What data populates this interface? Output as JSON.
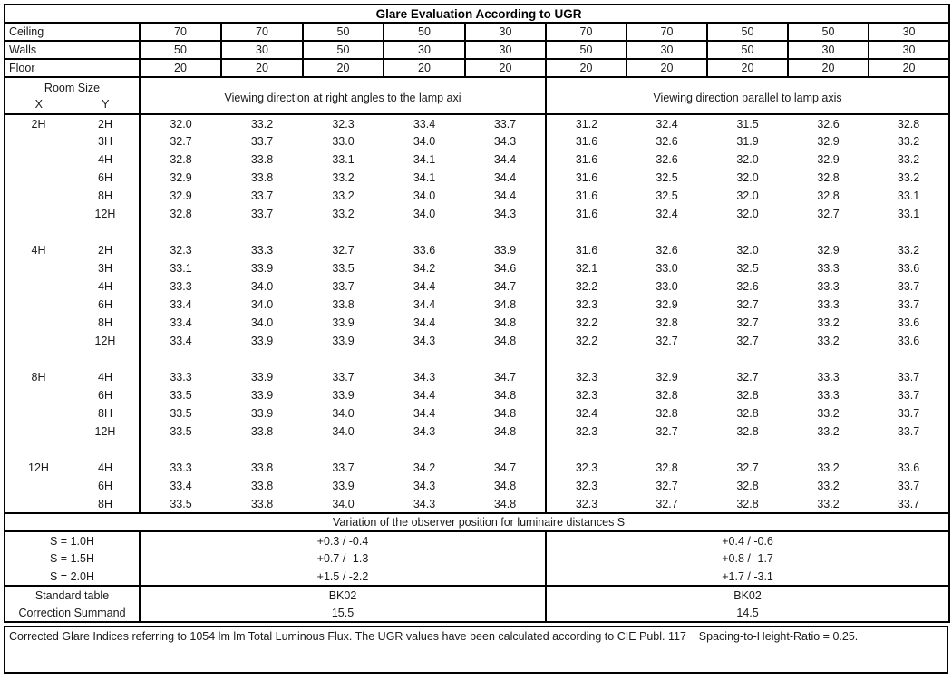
{
  "title": "Glare Evaluation According to UGR",
  "surface_rows": [
    {
      "label": "Ceiling",
      "values": [
        "70",
        "70",
        "50",
        "50",
        "30",
        "70",
        "70",
        "50",
        "50",
        "30"
      ]
    },
    {
      "label": "Walls",
      "values": [
        "50",
        "30",
        "50",
        "30",
        "30",
        "50",
        "30",
        "50",
        "30",
        "30"
      ]
    },
    {
      "label": "Floor",
      "values": [
        "20",
        "20",
        "20",
        "20",
        "20",
        "20",
        "20",
        "20",
        "20",
        "20"
      ]
    }
  ],
  "header": {
    "room_size": "Room Size",
    "x": "X",
    "y": "Y",
    "left_direction": "Viewing direction at right angles to the lamp axi",
    "right_direction": "Viewing direction parallel to lamp axis"
  },
  "groups": [
    {
      "x": "2H",
      "rows": [
        {
          "y": "2H",
          "left": [
            "32.0",
            "33.2",
            "32.3",
            "33.4",
            "33.7"
          ],
          "right": [
            "31.2",
            "32.4",
            "31.5",
            "32.6",
            "32.8"
          ]
        },
        {
          "y": "3H",
          "left": [
            "32.7",
            "33.7",
            "33.0",
            "34.0",
            "34.3"
          ],
          "right": [
            "31.6",
            "32.6",
            "31.9",
            "32.9",
            "33.2"
          ]
        },
        {
          "y": "4H",
          "left": [
            "32.8",
            "33.8",
            "33.1",
            "34.1",
            "34.4"
          ],
          "right": [
            "31.6",
            "32.6",
            "32.0",
            "32.9",
            "33.2"
          ]
        },
        {
          "y": "6H",
          "left": [
            "32.9",
            "33.8",
            "33.2",
            "34.1",
            "34.4"
          ],
          "right": [
            "31.6",
            "32.5",
            "32.0",
            "32.8",
            "33.2"
          ]
        },
        {
          "y": "8H",
          "left": [
            "32.9",
            "33.7",
            "33.2",
            "34.0",
            "34.4"
          ],
          "right": [
            "31.6",
            "32.5",
            "32.0",
            "32.8",
            "33.1"
          ]
        },
        {
          "y": "12H",
          "left": [
            "32.8",
            "33.7",
            "33.2",
            "34.0",
            "34.3"
          ],
          "right": [
            "31.6",
            "32.4",
            "32.0",
            "32.7",
            "33.1"
          ]
        }
      ]
    },
    {
      "x": "4H",
      "rows": [
        {
          "y": "2H",
          "left": [
            "32.3",
            "33.3",
            "32.7",
            "33.6",
            "33.9"
          ],
          "right": [
            "31.6",
            "32.6",
            "32.0",
            "32.9",
            "33.2"
          ]
        },
        {
          "y": "3H",
          "left": [
            "33.1",
            "33.9",
            "33.5",
            "34.2",
            "34.6"
          ],
          "right": [
            "32.1",
            "33.0",
            "32.5",
            "33.3",
            "33.6"
          ]
        },
        {
          "y": "4H",
          "left": [
            "33.3",
            "34.0",
            "33.7",
            "34.4",
            "34.7"
          ],
          "right": [
            "32.2",
            "33.0",
            "32.6",
            "33.3",
            "33.7"
          ]
        },
        {
          "y": "6H",
          "left": [
            "33.4",
            "34.0",
            "33.8",
            "34.4",
            "34.8"
          ],
          "right": [
            "32.3",
            "32.9",
            "32.7",
            "33.3",
            "33.7"
          ]
        },
        {
          "y": "8H",
          "left": [
            "33.4",
            "34.0",
            "33.9",
            "34.4",
            "34.8"
          ],
          "right": [
            "32.2",
            "32.8",
            "32.7",
            "33.2",
            "33.6"
          ]
        },
        {
          "y": "12H",
          "left": [
            "33.4",
            "33.9",
            "33.9",
            "34.3",
            "34.8"
          ],
          "right": [
            "32.2",
            "32.7",
            "32.7",
            "33.2",
            "33.6"
          ]
        }
      ]
    },
    {
      "x": "8H",
      "rows": [
        {
          "y": "4H",
          "left": [
            "33.3",
            "33.9",
            "33.7",
            "34.3",
            "34.7"
          ],
          "right": [
            "32.3",
            "32.9",
            "32.7",
            "33.3",
            "33.7"
          ]
        },
        {
          "y": "6H",
          "left": [
            "33.5",
            "33.9",
            "33.9",
            "34.4",
            "34.8"
          ],
          "right": [
            "32.3",
            "32.8",
            "32.8",
            "33.3",
            "33.7"
          ]
        },
        {
          "y": "8H",
          "left": [
            "33.5",
            "33.9",
            "34.0",
            "34.4",
            "34.8"
          ],
          "right": [
            "32.4",
            "32.8",
            "32.8",
            "33.2",
            "33.7"
          ]
        },
        {
          "y": "12H",
          "left": [
            "33.5",
            "33.8",
            "34.0",
            "34.3",
            "34.8"
          ],
          "right": [
            "32.3",
            "32.7",
            "32.8",
            "33.2",
            "33.7"
          ]
        }
      ]
    },
    {
      "x": "12H",
      "rows": [
        {
          "y": "4H",
          "left": [
            "33.3",
            "33.8",
            "33.7",
            "34.2",
            "34.7"
          ],
          "right": [
            "32.3",
            "32.8",
            "32.7",
            "33.2",
            "33.6"
          ]
        },
        {
          "y": "6H",
          "left": [
            "33.4",
            "33.8",
            "33.9",
            "34.3",
            "34.8"
          ],
          "right": [
            "32.3",
            "32.7",
            "32.8",
            "33.2",
            "33.7"
          ]
        },
        {
          "y": "8H",
          "left": [
            "33.5",
            "33.8",
            "34.0",
            "34.3",
            "34.8"
          ],
          "right": [
            "32.3",
            "32.7",
            "32.8",
            "33.2",
            "33.7"
          ]
        }
      ]
    }
  ],
  "variation": {
    "heading": "Variation of the observer position for luminaire distances S",
    "rows": [
      {
        "label": "S = 1.0H",
        "left": "+0.3 / -0.4",
        "right": "+0.4 / -0.6"
      },
      {
        "label": "S = 1.5H",
        "left": "+0.7 / -1.3",
        "right": "+0.8 / -1.7"
      },
      {
        "label": "S = 2.0H",
        "left": "+1.5 / -2.2",
        "right": "+1.7 / -3.1"
      }
    ]
  },
  "summary": {
    "rows": [
      {
        "label": "Standard table",
        "left": "BK02",
        "right": "BK02"
      },
      {
        "label": "Correction Summand",
        "left": "15.5",
        "right": "14.5"
      }
    ]
  },
  "footer": "Corrected Glare Indices referring to 1054 lm lm Total Luminous Flux. The UGR values have been calculated according to CIE Publ. 117    Spacing-to-Height-Ratio = 0.25."
}
